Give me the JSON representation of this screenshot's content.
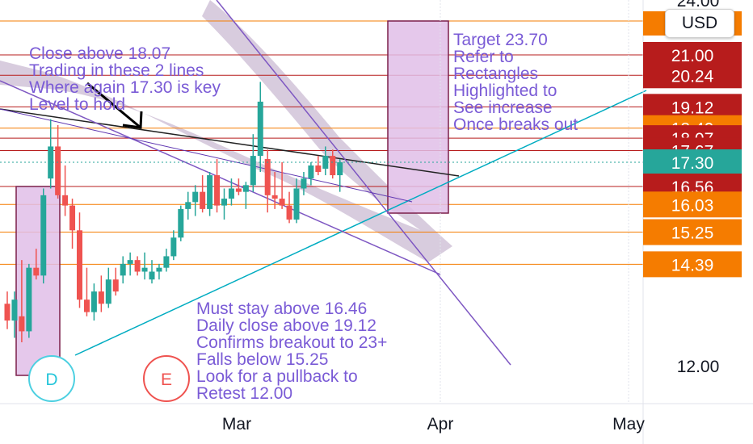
{
  "currency_button": "USD",
  "chart_data": {
    "type": "candlestick",
    "y_axis": {
      "scale": "log",
      "ylim": [
        10.8,
        24.0
      ],
      "top_partial_label": "24.00",
      "plain_label": "12.00"
    },
    "x_axis": {
      "tick_labels": [
        "Mar",
        "Apr",
        "May"
      ]
    },
    "current_price": "17.30",
    "price_levels": [
      {
        "label": "21.00",
        "value": 21.0,
        "color": "#b71c1c"
      },
      {
        "label": "20.24",
        "value": 20.24,
        "color": "#b71c1c"
      },
      {
        "label": "19.12",
        "value": 19.12,
        "color": "#b71c1c"
      },
      {
        "label": "18.40",
        "value": 18.4,
        "color": "#f57c00"
      },
      {
        "label": "18.07",
        "value": 18.07,
        "color": "#b71c1c"
      },
      {
        "label": "17.67",
        "value": 17.67,
        "color": "#b71c1c"
      },
      {
        "label": "17.30",
        "value": 17.3,
        "color": "#26a69a"
      },
      {
        "label": "16.56",
        "value": 16.56,
        "color": "#b71c1c"
      },
      {
        "label": "16.03",
        "value": 16.03,
        "color": "#f57c00"
      },
      {
        "label": "15.25",
        "value": 15.25,
        "color": "#f57c00"
      },
      {
        "label": "14.39",
        "value": 14.39,
        "color": "#f57c00"
      }
    ],
    "candles": [
      {
        "o": 13.4,
        "h": 13.7,
        "l": 12.8,
        "c": 13.0
      },
      {
        "o": 13.0,
        "h": 13.7,
        "l": 12.6,
        "c": 13.5
      },
      {
        "o": 13.1,
        "h": 14.5,
        "l": 12.5,
        "c": 12.75
      },
      {
        "o": 12.75,
        "h": 14.4,
        "l": 12.6,
        "c": 14.3
      },
      {
        "o": 14.3,
        "h": 14.8,
        "l": 14.0,
        "c": 14.1
      },
      {
        "o": 14.1,
        "h": 16.5,
        "l": 13.9,
        "c": 16.3
      },
      {
        "o": 16.8,
        "h": 18.7,
        "l": 16.5,
        "c": 17.8
      },
      {
        "o": 17.8,
        "h": 18.5,
        "l": 16.2,
        "c": 16.3
      },
      {
        "o": 16.3,
        "h": 17.2,
        "l": 15.7,
        "c": 16.0
      },
      {
        "o": 16.0,
        "h": 16.2,
        "l": 14.8,
        "c": 15.3
      },
      {
        "o": 15.3,
        "h": 15.8,
        "l": 13.3,
        "c": 13.5
      },
      {
        "o": 13.5,
        "h": 14.3,
        "l": 13.1,
        "c": 13.2
      },
      {
        "o": 13.2,
        "h": 13.9,
        "l": 13.0,
        "c": 13.7
      },
      {
        "o": 13.7,
        "h": 14.1,
        "l": 13.2,
        "c": 13.4
      },
      {
        "o": 13.4,
        "h": 14.3,
        "l": 13.3,
        "c": 14.0
      },
      {
        "o": 14.0,
        "h": 14.3,
        "l": 13.6,
        "c": 13.7
      },
      {
        "o": 14.1,
        "h": 14.6,
        "l": 13.9,
        "c": 14.4
      },
      {
        "o": 14.4,
        "h": 14.7,
        "l": 14.1,
        "c": 14.5
      },
      {
        "o": 14.5,
        "h": 14.6,
        "l": 14.1,
        "c": 14.2
      },
      {
        "o": 14.2,
        "h": 14.7,
        "l": 14.0,
        "c": 14.3
      },
      {
        "o": 14.0,
        "h": 14.5,
        "l": 13.9,
        "c": 14.2
      },
      {
        "o": 14.2,
        "h": 14.4,
        "l": 14.0,
        "c": 14.3
      },
      {
        "o": 14.3,
        "h": 14.8,
        "l": 14.2,
        "c": 14.6
      },
      {
        "o": 14.6,
        "h": 15.3,
        "l": 14.5,
        "c": 15.1
      },
      {
        "o": 15.1,
        "h": 16.0,
        "l": 15.0,
        "c": 15.9
      },
      {
        "o": 15.9,
        "h": 16.4,
        "l": 15.6,
        "c": 16.1
      },
      {
        "o": 16.1,
        "h": 16.6,
        "l": 15.7,
        "c": 16.4
      },
      {
        "o": 16.4,
        "h": 16.9,
        "l": 15.8,
        "c": 15.9
      },
      {
        "o": 15.9,
        "h": 17.0,
        "l": 15.7,
        "c": 16.9
      },
      {
        "o": 16.9,
        "h": 17.4,
        "l": 15.8,
        "c": 16.0
      },
      {
        "o": 16.0,
        "h": 16.5,
        "l": 15.6,
        "c": 16.2
      },
      {
        "o": 16.2,
        "h": 16.8,
        "l": 16.0,
        "c": 16.5
      },
      {
        "o": 16.5,
        "h": 16.8,
        "l": 16.3,
        "c": 16.4
      },
      {
        "o": 16.4,
        "h": 16.7,
        "l": 15.9,
        "c": 16.6
      },
      {
        "o": 16.6,
        "h": 18.2,
        "l": 16.4,
        "c": 17.5
      },
      {
        "o": 17.5,
        "h": 20.0,
        "l": 17.0,
        "c": 19.3
      },
      {
        "o": 17.4,
        "h": 17.7,
        "l": 15.8,
        "c": 16.3
      },
      {
        "o": 16.3,
        "h": 17.0,
        "l": 15.9,
        "c": 16.2
      },
      {
        "o": 16.2,
        "h": 17.3,
        "l": 15.9,
        "c": 16.0
      },
      {
        "o": 16.0,
        "h": 16.4,
        "l": 15.5,
        "c": 15.6
      },
      {
        "o": 15.6,
        "h": 16.8,
        "l": 15.5,
        "c": 16.5
      },
      {
        "o": 16.5,
        "h": 17.0,
        "l": 16.3,
        "c": 16.8
      },
      {
        "o": 16.8,
        "h": 17.3,
        "l": 16.6,
        "c": 17.2
      },
      {
        "o": 17.2,
        "h": 17.5,
        "l": 16.9,
        "c": 17.0
      },
      {
        "o": 17.1,
        "h": 17.8,
        "l": 16.9,
        "c": 17.5
      },
      {
        "o": 17.5,
        "h": 17.7,
        "l": 16.8,
        "c": 16.9
      },
      {
        "o": 16.9,
        "h": 17.4,
        "l": 16.4,
        "c": 17.3
      }
    ],
    "annotations": {
      "left_note": [
        "Close above 18.07",
        "Trading in these 2 lines",
        "Where again 17.30 is key",
        "Level to hold"
      ],
      "right_note": [
        "Target 23.70",
        "Refer to",
        "Rectangles",
        "Highlighted to",
        "See increase",
        "Once breaks out"
      ],
      "bottom_note": [
        "Must stay above 16.46",
        "Daily close above 19.12",
        "Confirms breakout to 23+",
        "Falls below 15.25",
        "Look for a pullback to",
        "Retest 12.00"
      ],
      "markers": [
        "D",
        "E"
      ]
    },
    "colors": {
      "up": "#26a69a",
      "down": "#ef5350",
      "rectangle": "#e1bee7",
      "trendline": "#00acc1",
      "channel": "#7e57c2",
      "highlight": "#b39ddb"
    }
  }
}
